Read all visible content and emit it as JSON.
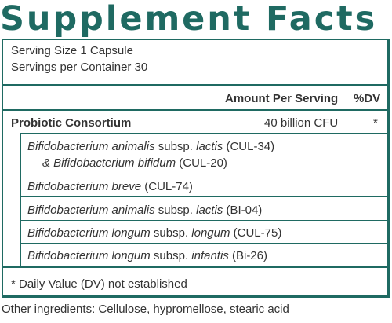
{
  "title": "Supplement Facts",
  "serving_size": "Serving Size 1 Capsule",
  "servings_per_container": "Servings per Container 30",
  "header": {
    "amount": "Amount Per Serving",
    "dv": "%DV"
  },
  "main_row": {
    "name": "Probiotic Consortium",
    "amount": "40 billion CFU",
    "dv": "*"
  },
  "strains": [
    {
      "line1_a": "Bifidobacterium animalis",
      "line1_b": " subsp. ",
      "line1_c": "lactis",
      "line1_d": " (CUL-34)",
      "line2_a": "& Bifidobacterium bifidum",
      "line2_b": " (CUL-20)"
    },
    {
      "a": "Bifidobacterium breve",
      "b": " (CUL-74)"
    },
    {
      "a": "Bifidobacterium animalis",
      "b": " subsp. ",
      "c": "lactis",
      "d": " (BI-04)"
    },
    {
      "a": "Bifidobacterium longum",
      "b": " subsp. ",
      "c": "longum",
      "d": " (CUL-75)"
    },
    {
      "a": "Bifidobacterium longum",
      "b": " subsp. ",
      "c": "infantis",
      "d": " (Bi-26)"
    }
  ],
  "footnote": "* Daily Value (DV) not established",
  "other_ingredients": "Other ingredients: Cellulose, hypromellose, stearic acid",
  "colors": {
    "accent": "#1f6a62",
    "text": "#333333"
  }
}
